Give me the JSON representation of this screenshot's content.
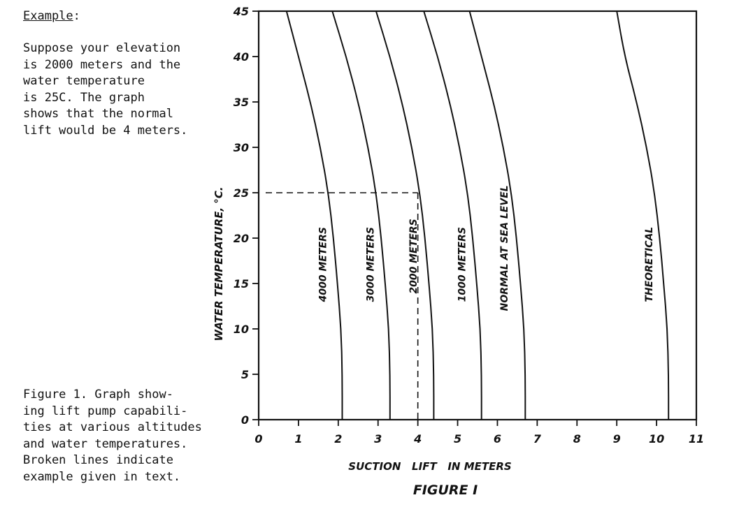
{
  "sidebar": {
    "example_heading": "Example",
    "example_colon": ":",
    "example_body": "  Suppose your elevation\nis 2000 meters and the\nwater temperature\nis 25C. The graph\nshows that the normal\nlift would be 4 meters.",
    "figure_caption": "Figure 1. Graph show-\ning lift pump capabili-\nties at various altitudes\nand water temperatures.\nBroken lines indicate\nexample given in text."
  },
  "chart_data": {
    "type": "line",
    "title": "FIGURE I",
    "xlabel": "SUCTION   LIFT   IN METERS",
    "ylabel": "WATER TEMPERATURE, °C.",
    "xlim": [
      0,
      11
    ],
    "ylim": [
      0,
      45
    ],
    "x_ticks": [
      "0",
      "1",
      "2",
      "3",
      "4",
      "5",
      "6",
      "7",
      "8",
      "9",
      "10",
      "11"
    ],
    "y_ticks": [
      "0",
      "5",
      "10",
      "15",
      "20",
      "25",
      "30",
      "35",
      "40",
      "45"
    ],
    "grid": false,
    "series": [
      {
        "name": "4000 METERS",
        "points": [
          [
            2.1,
            0
          ],
          [
            2.1,
            5
          ],
          [
            2.07,
            10
          ],
          [
            1.98,
            15
          ],
          [
            1.88,
            20
          ],
          [
            1.75,
            25
          ],
          [
            1.55,
            30
          ],
          [
            1.3,
            35
          ],
          [
            1.0,
            40
          ],
          [
            0.7,
            45
          ]
        ]
      },
      {
        "name": "3000 METERS",
        "points": [
          [
            3.3,
            0
          ],
          [
            3.3,
            5
          ],
          [
            3.27,
            10
          ],
          [
            3.18,
            15
          ],
          [
            3.08,
            20
          ],
          [
            2.95,
            25
          ],
          [
            2.75,
            30
          ],
          [
            2.5,
            35
          ],
          [
            2.2,
            40
          ],
          [
            1.85,
            45
          ]
        ]
      },
      {
        "name": "2000 METERS",
        "points": [
          [
            4.4,
            0
          ],
          [
            4.4,
            5
          ],
          [
            4.37,
            10
          ],
          [
            4.28,
            15
          ],
          [
            4.18,
            20
          ],
          [
            4.05,
            25
          ],
          [
            3.85,
            30
          ],
          [
            3.6,
            35
          ],
          [
            3.3,
            40
          ],
          [
            2.95,
            45
          ]
        ]
      },
      {
        "name": "1000 METERS",
        "points": [
          [
            5.6,
            0
          ],
          [
            5.6,
            5
          ],
          [
            5.57,
            10
          ],
          [
            5.48,
            15
          ],
          [
            5.38,
            20
          ],
          [
            5.25,
            25
          ],
          [
            5.05,
            30
          ],
          [
            4.8,
            35
          ],
          [
            4.5,
            40
          ],
          [
            4.15,
            45
          ]
        ]
      },
      {
        "name": "NORMAL   AT SEA LEVEL",
        "points": [
          [
            6.7,
            0
          ],
          [
            6.7,
            5
          ],
          [
            6.67,
            10
          ],
          [
            6.58,
            15
          ],
          [
            6.48,
            20
          ],
          [
            6.35,
            25
          ],
          [
            6.15,
            30
          ],
          [
            5.9,
            35
          ],
          [
            5.6,
            40
          ],
          [
            5.3,
            45
          ]
        ]
      },
      {
        "name": "THEORETICAL",
        "points": [
          [
            10.3,
            0
          ],
          [
            10.3,
            5
          ],
          [
            10.27,
            10
          ],
          [
            10.18,
            15
          ],
          [
            10.08,
            20
          ],
          [
            9.95,
            25
          ],
          [
            9.75,
            30
          ],
          [
            9.5,
            35
          ],
          [
            9.2,
            40
          ],
          [
            9.0,
            45
          ]
        ]
      }
    ],
    "example_guide": {
      "x": 4.0,
      "y": 25,
      "style": "dashed"
    }
  }
}
